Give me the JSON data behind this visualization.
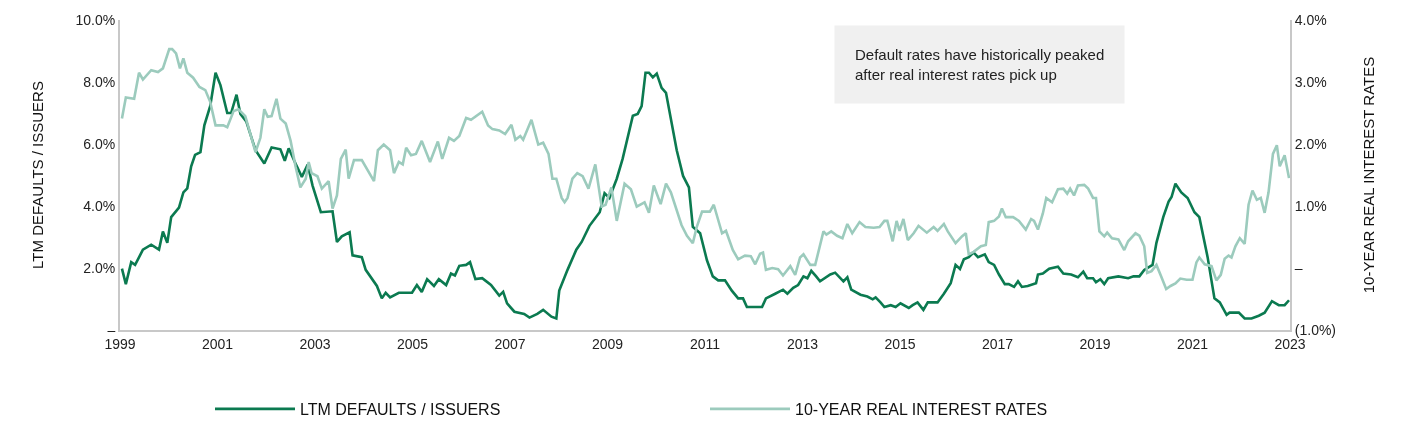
{
  "chart_data": {
    "type": "line",
    "ylabel": "LTM DEFAULTS / ISSUERS",
    "y2label": "10-YEAR REAL INTEREST RATES",
    "annotations": [
      "Default rates have historically peaked\nafter real interest rates pick up"
    ],
    "xlim": [
      1999,
      2023
    ],
    "xticks": [
      1999,
      2001,
      2003,
      2005,
      2007,
      2009,
      2011,
      2013,
      2015,
      2017,
      2019,
      2021,
      2023
    ],
    "ylim": [
      0,
      10
    ],
    "yticks": [
      {
        "value": 0,
        "label": "–"
      },
      {
        "value": 2,
        "label": "2.0%"
      },
      {
        "value": 4,
        "label": "4.0%"
      },
      {
        "value": 6,
        "label": "6.0%"
      },
      {
        "value": 8,
        "label": "8.0%"
      },
      {
        "value": 10,
        "label": "10.0%"
      }
    ],
    "y2lim": [
      -1,
      4
    ],
    "y2ticks": [
      {
        "value": -1,
        "label": "(1.0%)"
      },
      {
        "value": 0,
        "label": "–"
      },
      {
        "value": 1,
        "label": "1.0%"
      },
      {
        "value": 2,
        "label": "2.0%"
      },
      {
        "value": 3,
        "label": "3.0%"
      },
      {
        "value": 4,
        "label": "4.0%"
      }
    ],
    "legend": "bottom",
    "series": [
      {
        "name": "LTM DEFAULTS / ISSUERS",
        "color": "#0b7a50",
        "x": [
          1999.04,
          1999.12,
          1999.23,
          1999.31,
          1999.47,
          1999.64,
          1999.8,
          1999.88,
          1999.97,
          2000.05,
          2000.21,
          2000.3,
          2000.38,
          2000.46,
          2000.54,
          2000.65,
          2000.73,
          2000.85,
          2000.96,
          2001.06,
          2001.2,
          2001.28,
          2001.39,
          2001.47,
          2001.59,
          2001.78,
          2001.96,
          2002.11,
          2002.29,
          2002.38,
          2002.46,
          2002.6,
          2002.73,
          2002.85,
          2002.95,
          2003.12,
          2003.36,
          2003.45,
          2003.55,
          2003.71,
          2003.77,
          2003.96,
          2004.04,
          2004.27,
          2004.37,
          2004.45,
          2004.54,
          2004.72,
          2004.99,
          2005.09,
          2005.19,
          2005.3,
          2005.44,
          2005.54,
          2005.69,
          2005.79,
          2005.87,
          2005.96,
          2006.1,
          2006.18,
          2006.29,
          2006.43,
          2006.61,
          2006.78,
          2006.86,
          2006.94,
          2007.09,
          2007.29,
          2007.4,
          2007.56,
          2007.68,
          2007.85,
          2007.95,
          2008.01,
          2008.18,
          2008.36,
          2008.47,
          2008.63,
          2008.84,
          2008.94,
          2009.04,
          2009.19,
          2009.31,
          2009.52,
          2009.62,
          2009.7,
          2009.78,
          2009.85,
          2009.93,
          2010.01,
          2010.11,
          2010.2,
          2010.42,
          2010.55,
          2010.67,
          2010.75,
          2010.9,
          2011.04,
          2011.16,
          2011.27,
          2011.41,
          2011.55,
          2011.68,
          2011.78,
          2011.86,
          2012.17,
          2012.25,
          2012.44,
          2012.6,
          2012.69,
          2012.81,
          2012.91,
          2013.02,
          2013.1,
          2013.18,
          2013.28,
          2013.36,
          2013.57,
          2013.67,
          2013.84,
          2013.92,
          2014.0,
          2014.19,
          2014.33,
          2014.44,
          2014.5,
          2014.6,
          2014.68,
          2014.81,
          2014.91,
          2015.01,
          2015.18,
          2015.26,
          2015.36,
          2015.48,
          2015.57,
          2015.77,
          2015.9,
          2016.04,
          2016.14,
          2016.23,
          2016.31,
          2016.41,
          2016.51,
          2016.6,
          2016.74,
          2016.82,
          2016.93,
          2017.03,
          2017.15,
          2017.23,
          2017.34,
          2017.42,
          2017.5,
          2017.62,
          2017.79,
          2017.83,
          2017.93,
          2018.06,
          2018.24,
          2018.35,
          2018.51,
          2018.65,
          2018.76,
          2018.84,
          2018.96,
          2019.02,
          2019.11,
          2019.19,
          2019.27,
          2019.48,
          2019.68,
          2019.79,
          2019.91,
          2020.01,
          2020.18,
          2020.26,
          2020.4,
          2020.51,
          2020.57,
          2020.65,
          2020.77,
          2020.9,
          2021.04,
          2021.14,
          2021.31,
          2021.45,
          2021.56,
          2021.7,
          2021.76,
          2021.95,
          2022.07,
          2022.21,
          2022.36,
          2022.48,
          2022.63,
          2022.77,
          2022.89,
          2022.98
        ],
        "values": [
          1.98,
          1.48,
          2.19,
          2.1,
          2.59,
          2.75,
          2.59,
          3.18,
          2.81,
          3.64,
          3.95,
          4.44,
          4.57,
          5.28,
          5.65,
          5.74,
          6.6,
          7.22,
          8.3,
          7.9,
          7.0,
          7.0,
          7.59,
          6.97,
          6.73,
          5.8,
          5.37,
          5.89,
          5.83,
          5.46,
          5.86,
          5.37,
          4.94,
          5.34,
          4.66,
          3.8,
          3.83,
          2.84,
          3.02,
          3.15,
          2.41,
          2.35,
          1.94,
          1.42,
          1.02,
          1.2,
          1.05,
          1.2,
          1.2,
          1.45,
          1.23,
          1.64,
          1.42,
          1.64,
          1.45,
          1.82,
          1.76,
          2.07,
          2.1,
          2.19,
          1.64,
          1.67,
          1.45,
          1.11,
          1.23,
          0.86,
          0.59,
          0.52,
          0.4,
          0.52,
          0.65,
          0.43,
          0.37,
          1.27,
          1.94,
          2.59,
          2.84,
          3.36,
          3.8,
          4.41,
          4.26,
          4.88,
          5.52,
          6.91,
          6.97,
          7.22,
          8.3,
          8.3,
          8.15,
          8.27,
          7.81,
          7.65,
          5.8,
          4.97,
          4.6,
          3.33,
          3.12,
          2.25,
          1.73,
          1.6,
          1.6,
          1.27,
          1.02,
          1.02,
          0.74,
          0.74,
          1.02,
          1.17,
          1.3,
          1.17,
          1.36,
          1.45,
          1.73,
          1.67,
          1.91,
          1.73,
          1.57,
          1.79,
          1.85,
          1.57,
          1.7,
          1.3,
          1.14,
          1.08,
          0.99,
          1.05,
          0.89,
          0.74,
          0.8,
          0.74,
          0.86,
          0.71,
          0.8,
          0.89,
          0.65,
          0.89,
          0.89,
          1.17,
          1.51,
          2.1,
          1.97,
          2.28,
          2.35,
          2.5,
          2.35,
          2.44,
          2.19,
          2.1,
          1.79,
          1.48,
          1.48,
          1.39,
          1.57,
          1.39,
          1.42,
          1.51,
          1.79,
          1.82,
          1.98,
          2.04,
          1.82,
          1.79,
          1.7,
          1.88,
          1.67,
          1.67,
          1.54,
          1.64,
          1.48,
          1.67,
          1.73,
          1.67,
          1.73,
          1.73,
          1.94,
          2.1,
          2.81,
          3.64,
          4.14,
          4.29,
          4.72,
          4.44,
          4.26,
          3.8,
          3.64,
          2.35,
          1.02,
          0.89,
          0.49,
          0.56,
          0.56,
          0.37,
          0.37,
          0.46,
          0.56,
          0.93,
          0.8,
          0.8,
          0.96
        ]
      },
      {
        "name": "10-YEAR REAL INTEREST RATES",
        "color": "#9ccbbd",
        "axis": "y2",
        "x": [
          1999.04,
          1999.12,
          1999.29,
          1999.39,
          1999.47,
          1999.64,
          1999.78,
          1999.88,
          2000.01,
          2000.07,
          2000.15,
          2000.23,
          2000.3,
          2000.38,
          2000.5,
          2000.63,
          2000.75,
          2000.85,
          2000.96,
          2001.12,
          2001.2,
          2001.33,
          2001.43,
          2001.57,
          2001.78,
          2001.88,
          2001.96,
          2002.03,
          2002.11,
          2002.21,
          2002.29,
          2002.4,
          2002.5,
          2002.6,
          2002.7,
          2002.81,
          2002.87,
          2002.93,
          2003.05,
          2003.14,
          2003.28,
          2003.36,
          2003.45,
          2003.53,
          2003.63,
          2003.69,
          2003.8,
          2003.96,
          2004.21,
          2004.29,
          2004.41,
          2004.54,
          2004.62,
          2004.72,
          2004.8,
          2004.87,
          2004.97,
          2005.07,
          2005.19,
          2005.36,
          2005.52,
          2005.61,
          2005.75,
          2005.85,
          2005.96,
          2006.1,
          2006.2,
          2006.43,
          2006.55,
          2006.64,
          2006.78,
          2006.9,
          2007.03,
          2007.11,
          2007.21,
          2007.27,
          2007.44,
          2007.58,
          2007.68,
          2007.79,
          2007.87,
          2007.95,
          2008.06,
          2008.12,
          2008.18,
          2008.28,
          2008.38,
          2008.49,
          2008.61,
          2008.75,
          2008.88,
          2008.96,
          2009.08,
          2009.19,
          2009.35,
          2009.48,
          2009.6,
          2009.76,
          2009.85,
          2009.95,
          2010.09,
          2010.2,
          2010.3,
          2010.52,
          2010.63,
          2010.75,
          2010.83,
          2010.94,
          2011.1,
          2011.18,
          2011.35,
          2011.43,
          2011.57,
          2011.68,
          2011.82,
          2011.94,
          2012.03,
          2012.13,
          2012.19,
          2012.25,
          2012.38,
          2012.5,
          2012.6,
          2012.75,
          2012.85,
          2012.95,
          2013.02,
          2013.16,
          2013.26,
          2013.43,
          2013.49,
          2013.59,
          2013.71,
          2013.82,
          2013.92,
          2014.02,
          2014.17,
          2014.29,
          2014.46,
          2014.58,
          2014.68,
          2014.74,
          2014.85,
          2014.93,
          2014.99,
          2015.07,
          2015.16,
          2015.28,
          2015.38,
          2015.55,
          2015.69,
          2015.77,
          2015.9,
          2015.98,
          2016.14,
          2016.27,
          2016.35,
          2016.41,
          2016.51,
          2016.66,
          2016.76,
          2016.82,
          2016.93,
          2017.03,
          2017.09,
          2017.17,
          2017.32,
          2017.44,
          2017.58,
          2017.69,
          2017.75,
          2017.83,
          2017.93,
          2018.0,
          2018.12,
          2018.24,
          2018.35,
          2018.43,
          2018.49,
          2018.57,
          2018.65,
          2018.78,
          2018.86,
          2018.96,
          2019.02,
          2019.09,
          2019.19,
          2019.25,
          2019.35,
          2019.48,
          2019.6,
          2019.68,
          2019.83,
          2019.91,
          2020.01,
          2020.07,
          2020.16,
          2020.26,
          2020.36,
          2020.46,
          2020.55,
          2020.65,
          2020.75,
          2020.88,
          2021.0,
          2021.08,
          2021.14,
          2021.25,
          2021.39,
          2021.49,
          2021.58,
          2021.66,
          2021.74,
          2021.8,
          2021.88,
          2021.97,
          2022.07,
          2022.15,
          2022.23,
          2022.32,
          2022.4,
          2022.48,
          2022.56,
          2022.65,
          2022.73,
          2022.79,
          2022.89,
          2022.98
        ],
        "values": [
          2.41,
          2.75,
          2.73,
          3.15,
          3.04,
          3.19,
          3.16,
          3.22,
          3.53,
          3.53,
          3.46,
          3.22,
          3.38,
          3.15,
          3.07,
          2.92,
          2.87,
          2.68,
          2.3,
          2.3,
          2.27,
          2.53,
          2.56,
          2.45,
          1.87,
          2.1,
          2.56,
          2.44,
          2.45,
          2.73,
          2.41,
          2.33,
          2.05,
          1.64,
          1.3,
          1.44,
          1.71,
          1.53,
          1.48,
          1.28,
          1.4,
          0.96,
          1.17,
          1.76,
          1.91,
          1.44,
          1.74,
          1.74,
          1.4,
          1.9,
          1.99,
          1.9,
          1.53,
          1.71,
          1.67,
          1.94,
          1.82,
          1.84,
          2.05,
          1.71,
          2.04,
          1.76,
          2.1,
          2.05,
          2.13,
          2.42,
          2.39,
          2.52,
          2.3,
          2.24,
          2.22,
          2.16,
          2.31,
          2.07,
          2.13,
          2.07,
          2.39,
          1.99,
          2.02,
          1.84,
          1.44,
          1.44,
          1.13,
          1.06,
          1.13,
          1.44,
          1.53,
          1.48,
          1.28,
          1.67,
          0.99,
          1.02,
          1.3,
          0.76,
          1.36,
          1.27,
          0.99,
          1.06,
          0.89,
          1.33,
          1.03,
          1.36,
          1.22,
          0.69,
          0.52,
          0.4,
          0.66,
          0.91,
          0.91,
          1.02,
          0.56,
          0.6,
          0.29,
          0.14,
          0.2,
          0.19,
          0.06,
          0.23,
          0.25,
          -0.03,
          0.0,
          -0.02,
          -0.12,
          0.03,
          -0.11,
          0.17,
          0.22,
          0.05,
          0.05,
          0.59,
          0.54,
          0.59,
          0.52,
          0.48,
          0.71,
          0.56,
          0.74,
          0.66,
          0.65,
          0.66,
          0.76,
          0.76,
          0.43,
          0.76,
          0.6,
          0.79,
          0.45,
          0.56,
          0.68,
          0.57,
          0.66,
          0.6,
          0.71,
          0.59,
          0.4,
          0.51,
          0.56,
          0.22,
          0.26,
          0.35,
          0.37,
          0.74,
          0.76,
          0.83,
          0.96,
          0.82,
          0.82,
          0.76,
          0.62,
          0.79,
          0.76,
          0.62,
          0.88,
          1.13,
          1.06,
          1.27,
          1.28,
          1.2,
          1.28,
          1.17,
          1.33,
          1.34,
          1.28,
          1.13,
          1.13,
          0.59,
          0.51,
          0.57,
          0.48,
          0.46,
          0.29,
          0.43,
          0.56,
          0.52,
          0.35,
          -0.08,
          -0.05,
          0.05,
          -0.14,
          -0.34,
          -0.29,
          -0.25,
          -0.17,
          -0.19,
          -0.19,
          0.09,
          0.17,
          0.06,
          0.03,
          -0.2,
          -0.11,
          0.15,
          0.2,
          0.17,
          0.35,
          0.48,
          0.39,
          1.02,
          1.25,
          1.1,
          1.13,
          0.89,
          1.22,
          1.84,
          1.98,
          1.64,
          1.82,
          1.45
        ]
      }
    ]
  }
}
